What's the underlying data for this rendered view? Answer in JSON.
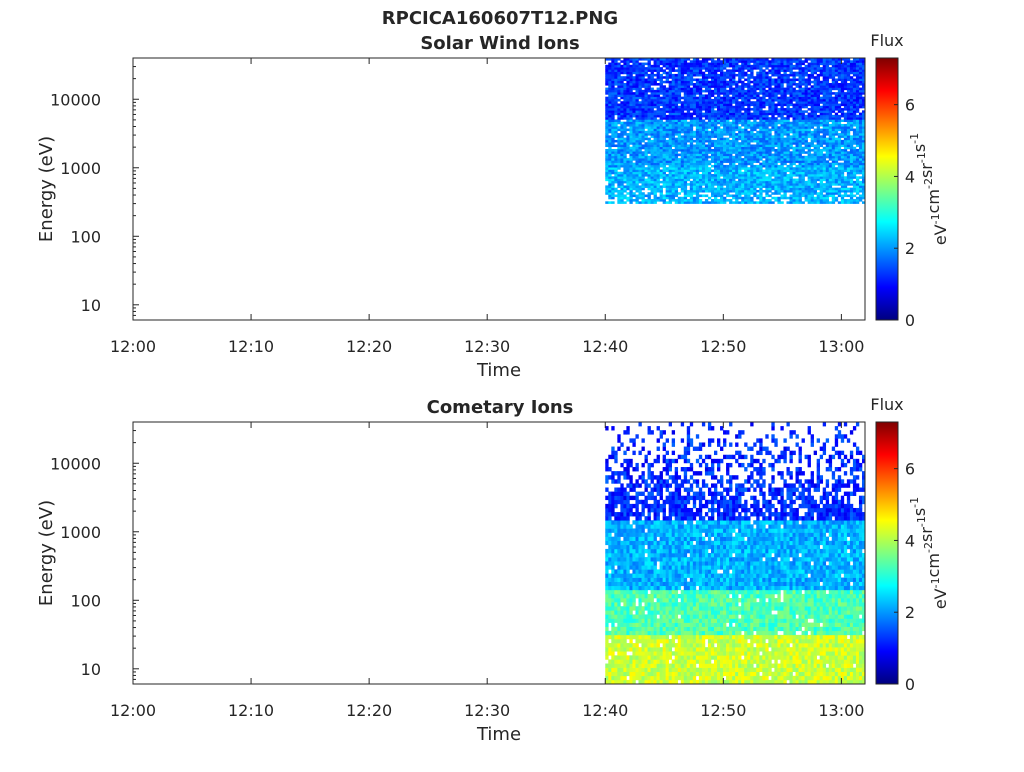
{
  "figure_title": "RPCICA160607T12.PNG",
  "chart_data": [
    {
      "type": "heatmap",
      "title": "Solar Wind Ions",
      "xlabel": "Time",
      "ylabel": "Energy (eV)",
      "y_scale": "log",
      "xticks": [
        "12:00",
        "12:10",
        "12:20",
        "12:30",
        "12:40",
        "12:50",
        "13:00"
      ],
      "xlim": [
        "12:00",
        "13:02"
      ],
      "yticks": [
        "10",
        "100",
        "1000",
        "10000"
      ],
      "ylim": [
        6,
        40000
      ],
      "data_time_range": [
        "12:40",
        "13:02"
      ],
      "energy_range": [
        300,
        40000
      ],
      "colorbar": {
        "title": "Flux",
        "label": "eV^-1cm^-2sr^-1s^-1",
        "ticks": [
          "0",
          "2",
          "4",
          "6"
        ],
        "range": [
          0,
          7.3
        ],
        "colormap": "jet"
      },
      "series": [
        {
          "energy_range": [
            300,
            1000
          ],
          "flux_level": 2.2
        },
        {
          "energy_range": [
            1000,
            5000
          ],
          "flux_level": 2.0
        },
        {
          "energy_range": [
            5000,
            40000
          ],
          "flux_level": 1.3
        }
      ]
    },
    {
      "type": "heatmap",
      "title": "Cometary Ions",
      "xlabel": "Time",
      "ylabel": "Energy (eV)",
      "y_scale": "log",
      "xticks": [
        "12:00",
        "12:10",
        "12:20",
        "12:30",
        "12:40",
        "12:50",
        "13:00"
      ],
      "xlim": [
        "12:00",
        "13:02"
      ],
      "yticks": [
        "10",
        "100",
        "1000",
        "10000"
      ],
      "ylim": [
        6,
        40000
      ],
      "data_time_range": [
        "12:40",
        "13:02"
      ],
      "energy_range": [
        6,
        40000
      ],
      "colorbar": {
        "title": "Flux",
        "label": "eV^-1cm^-2sr^-1s^-1",
        "ticks": [
          "0",
          "2",
          "4",
          "6"
        ],
        "range": [
          0,
          7.3
        ],
        "colormap": "jet"
      },
      "series": [
        {
          "energy_range": [
            6,
            30
          ],
          "flux_level": 4.2
        },
        {
          "energy_range": [
            30,
            150
          ],
          "flux_level": 3.3
        },
        {
          "energy_range": [
            150,
            1500
          ],
          "flux_level": 2.2
        },
        {
          "energy_range": [
            1500,
            40000
          ],
          "flux_level": 1.2
        }
      ]
    }
  ]
}
